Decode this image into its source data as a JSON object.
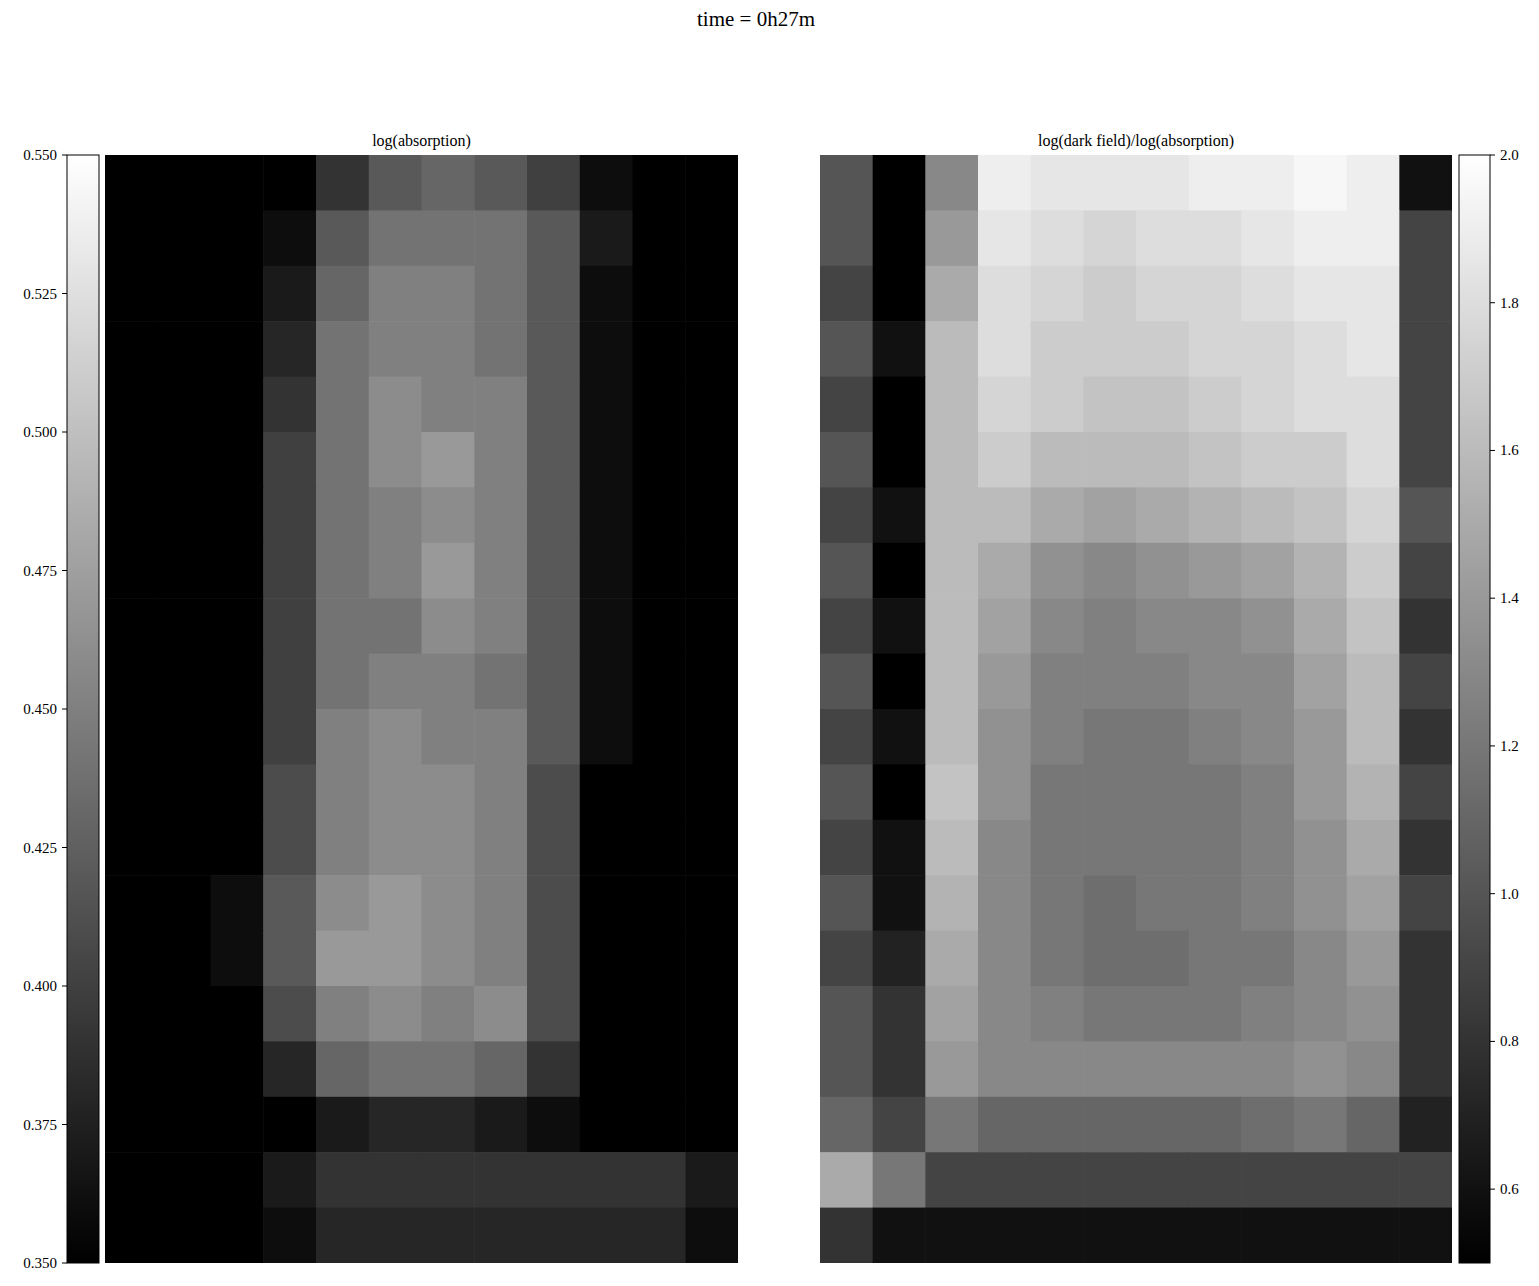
{
  "title": "time = 0h27m",
  "chart_data": [
    {
      "type": "heatmap",
      "title": "log(absorption)",
      "colorbar_range": [
        0.35,
        0.55
      ],
      "colorbar_ticks": [
        {
          "value": 0.35,
          "label": "0.350"
        },
        {
          "value": 0.375,
          "label": "0.375"
        },
        {
          "value": 0.4,
          "label": "0.400"
        },
        {
          "value": 0.425,
          "label": "0.425"
        },
        {
          "value": 0.45,
          "label": "0.450"
        },
        {
          "value": 0.475,
          "label": "0.475"
        },
        {
          "value": 0.5,
          "label": "0.500"
        },
        {
          "value": 0.525,
          "label": "0.525"
        },
        {
          "value": 0.55,
          "label": "0.550"
        }
      ],
      "tick_labels": false,
      "cells": [
        [
          0.35,
          0.35,
          0.35,
          0.35,
          0.39,
          0.42,
          0.43,
          0.42,
          0.4,
          0.36,
          0.35,
          0.35
        ],
        [
          0.35,
          0.35,
          0.35,
          0.36,
          0.42,
          0.44,
          0.44,
          0.44,
          0.42,
          0.37,
          0.35,
          0.35
        ],
        [
          0.35,
          0.35,
          0.35,
          0.37,
          0.43,
          0.45,
          0.45,
          0.44,
          0.42,
          0.36,
          0.35,
          0.35
        ],
        [
          0.35,
          0.35,
          0.35,
          0.38,
          0.44,
          0.45,
          0.45,
          0.44,
          0.42,
          0.36,
          0.35,
          0.35
        ],
        [
          0.35,
          0.35,
          0.35,
          0.39,
          0.44,
          0.46,
          0.45,
          0.45,
          0.42,
          0.36,
          0.35,
          0.35
        ],
        [
          0.35,
          0.35,
          0.35,
          0.4,
          0.44,
          0.46,
          0.47,
          0.45,
          0.42,
          0.36,
          0.35,
          0.35
        ],
        [
          0.35,
          0.35,
          0.35,
          0.4,
          0.44,
          0.45,
          0.46,
          0.45,
          0.42,
          0.36,
          0.35,
          0.35
        ],
        [
          0.35,
          0.35,
          0.35,
          0.4,
          0.44,
          0.45,
          0.47,
          0.45,
          0.42,
          0.36,
          0.35,
          0.35
        ],
        [
          0.35,
          0.35,
          0.35,
          0.4,
          0.44,
          0.44,
          0.46,
          0.45,
          0.42,
          0.36,
          0.35,
          0.35
        ],
        [
          0.35,
          0.35,
          0.35,
          0.4,
          0.44,
          0.45,
          0.45,
          0.44,
          0.42,
          0.36,
          0.35,
          0.35
        ],
        [
          0.35,
          0.35,
          0.35,
          0.4,
          0.45,
          0.46,
          0.45,
          0.45,
          0.42,
          0.36,
          0.35,
          0.35
        ],
        [
          0.35,
          0.35,
          0.35,
          0.41,
          0.45,
          0.46,
          0.46,
          0.45,
          0.41,
          0.35,
          0.35,
          0.35
        ],
        [
          0.35,
          0.35,
          0.35,
          0.41,
          0.45,
          0.46,
          0.46,
          0.45,
          0.41,
          0.35,
          0.35,
          0.35
        ],
        [
          0.35,
          0.35,
          0.36,
          0.42,
          0.46,
          0.47,
          0.46,
          0.45,
          0.41,
          0.35,
          0.35,
          0.35
        ],
        [
          0.35,
          0.35,
          0.36,
          0.42,
          0.47,
          0.47,
          0.46,
          0.45,
          0.41,
          0.35,
          0.35,
          0.35
        ],
        [
          0.35,
          0.35,
          0.35,
          0.41,
          0.45,
          0.46,
          0.45,
          0.46,
          0.41,
          0.35,
          0.35,
          0.35
        ],
        [
          0.35,
          0.35,
          0.35,
          0.38,
          0.43,
          0.44,
          0.44,
          0.43,
          0.39,
          0.35,
          0.35,
          0.35
        ],
        [
          0.35,
          0.35,
          0.35,
          0.35,
          0.37,
          0.38,
          0.38,
          0.37,
          0.36,
          0.35,
          0.35,
          0.35
        ],
        [
          0.35,
          0.35,
          0.35,
          0.37,
          0.39,
          0.39,
          0.39,
          0.39,
          0.39,
          0.39,
          0.39,
          0.37
        ],
        [
          0.35,
          0.35,
          0.35,
          0.36,
          0.38,
          0.38,
          0.38,
          0.38,
          0.38,
          0.38,
          0.38,
          0.36
        ]
      ]
    },
    {
      "type": "heatmap",
      "title": "log(dark field)/log(absorption)",
      "colorbar_range": [
        0.5,
        2.0
      ],
      "colorbar_ticks": [
        0.6,
        0.8,
        {
          "value": 1.0,
          "label": "1.0"
        },
        1.2,
        1.4,
        1.6,
        1.8,
        {
          "value": 2.0,
          "label": "2.0"
        }
      ],
      "tick_labels": false,
      "cells": [
        [
          1.0,
          0.5,
          1.3,
          1.9,
          1.85,
          1.85,
          1.85,
          1.9,
          1.9,
          1.95,
          1.9,
          0.6
        ],
        [
          1.0,
          0.5,
          1.4,
          1.85,
          1.8,
          1.75,
          1.8,
          1.8,
          1.85,
          1.9,
          1.9,
          0.9
        ],
        [
          0.9,
          0.5,
          1.5,
          1.8,
          1.75,
          1.7,
          1.75,
          1.75,
          1.8,
          1.85,
          1.85,
          0.9
        ],
        [
          1.0,
          0.6,
          1.6,
          1.8,
          1.7,
          1.7,
          1.7,
          1.75,
          1.75,
          1.8,
          1.85,
          0.9
        ],
        [
          0.9,
          0.5,
          1.6,
          1.75,
          1.7,
          1.65,
          1.65,
          1.7,
          1.75,
          1.8,
          1.8,
          0.9
        ],
        [
          1.0,
          0.5,
          1.6,
          1.7,
          1.6,
          1.6,
          1.6,
          1.65,
          1.7,
          1.7,
          1.8,
          0.9
        ],
        [
          0.9,
          0.6,
          1.6,
          1.6,
          1.5,
          1.45,
          1.5,
          1.55,
          1.6,
          1.65,
          1.75,
          1.0
        ],
        [
          1.0,
          0.5,
          1.6,
          1.5,
          1.35,
          1.3,
          1.35,
          1.4,
          1.45,
          1.55,
          1.7,
          0.9
        ],
        [
          0.9,
          0.6,
          1.6,
          1.45,
          1.3,
          1.25,
          1.3,
          1.3,
          1.35,
          1.5,
          1.65,
          0.8
        ],
        [
          1.0,
          0.5,
          1.6,
          1.4,
          1.25,
          1.25,
          1.25,
          1.3,
          1.3,
          1.45,
          1.6,
          0.9
        ],
        [
          0.9,
          0.6,
          1.6,
          1.35,
          1.25,
          1.2,
          1.2,
          1.25,
          1.3,
          1.4,
          1.6,
          0.8
        ],
        [
          1.0,
          0.5,
          1.65,
          1.35,
          1.2,
          1.2,
          1.2,
          1.2,
          1.25,
          1.4,
          1.55,
          0.9
        ],
        [
          0.9,
          0.6,
          1.6,
          1.3,
          1.2,
          1.2,
          1.2,
          1.2,
          1.25,
          1.35,
          1.5,
          0.8
        ],
        [
          1.0,
          0.6,
          1.55,
          1.3,
          1.2,
          1.15,
          1.2,
          1.2,
          1.25,
          1.35,
          1.45,
          0.9
        ],
        [
          0.9,
          0.7,
          1.5,
          1.3,
          1.2,
          1.15,
          1.15,
          1.2,
          1.2,
          1.3,
          1.4,
          0.8
        ],
        [
          1.0,
          0.8,
          1.45,
          1.3,
          1.25,
          1.2,
          1.2,
          1.2,
          1.25,
          1.3,
          1.35,
          0.8
        ],
        [
          1.0,
          0.8,
          1.4,
          1.3,
          1.3,
          1.3,
          1.3,
          1.3,
          1.3,
          1.35,
          1.3,
          0.8
        ],
        [
          1.1,
          0.9,
          1.2,
          1.1,
          1.1,
          1.1,
          1.1,
          1.1,
          1.15,
          1.2,
          1.1,
          0.7
        ],
        [
          1.5,
          1.2,
          0.9,
          0.9,
          0.9,
          0.9,
          0.9,
          0.9,
          0.9,
          0.9,
          0.9,
          0.9
        ],
        [
          0.8,
          0.6,
          0.6,
          0.6,
          0.6,
          0.6,
          0.6,
          0.6,
          0.6,
          0.6,
          0.6,
          0.6
        ]
      ]
    }
  ]
}
